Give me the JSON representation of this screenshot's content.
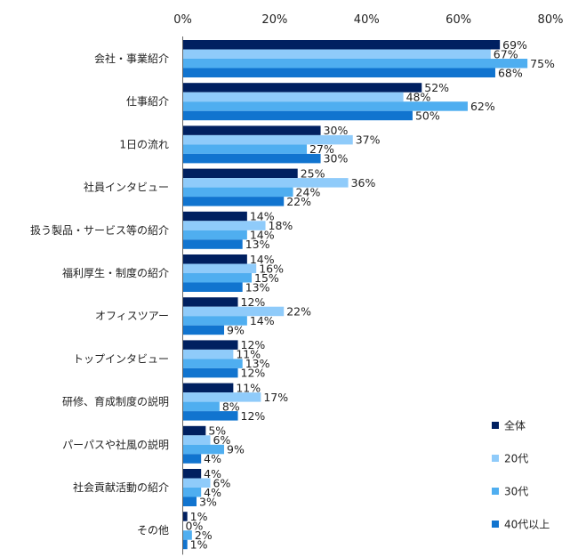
{
  "chart_data": {
    "type": "bar",
    "orientation": "horizontal",
    "xlim": [
      0,
      80
    ],
    "x_ticks": [
      "0%",
      "20%",
      "40%",
      "60%",
      "80%"
    ],
    "x_tick_values": [
      0,
      20,
      40,
      60,
      80
    ],
    "grid": false,
    "legend_position": "bottom-right",
    "value_suffix": "%",
    "categories": [
      "会社・事業紹介",
      "仕事紹介",
      "1日の流れ",
      "社員インタビュー",
      "扱う製品・サービス等の紹介",
      "福利厚生・制度の紹介",
      "オフィスツアー",
      "トップインタビュー",
      "研修、育成制度の説明",
      "パーパスや社風の説明",
      "社会貢献活動の紹介",
      "その他"
    ],
    "series": [
      {
        "name": "全体",
        "color": "#002060",
        "values": [
          69,
          52,
          30,
          25,
          14,
          14,
          12,
          12,
          11,
          5,
          4,
          1
        ]
      },
      {
        "name": "20代",
        "color": "#8FCBFA",
        "values": [
          67,
          48,
          37,
          36,
          18,
          16,
          22,
          11,
          17,
          6,
          6,
          0
        ]
      },
      {
        "name": "30代",
        "color": "#4FAEF0",
        "values": [
          75,
          62,
          27,
          24,
          14,
          15,
          14,
          13,
          8,
          9,
          4,
          2
        ]
      },
      {
        "name": "40代以上",
        "color": "#1174CF",
        "values": [
          68,
          50,
          30,
          22,
          13,
          13,
          9,
          12,
          12,
          4,
          3,
          1
        ]
      }
    ]
  }
}
